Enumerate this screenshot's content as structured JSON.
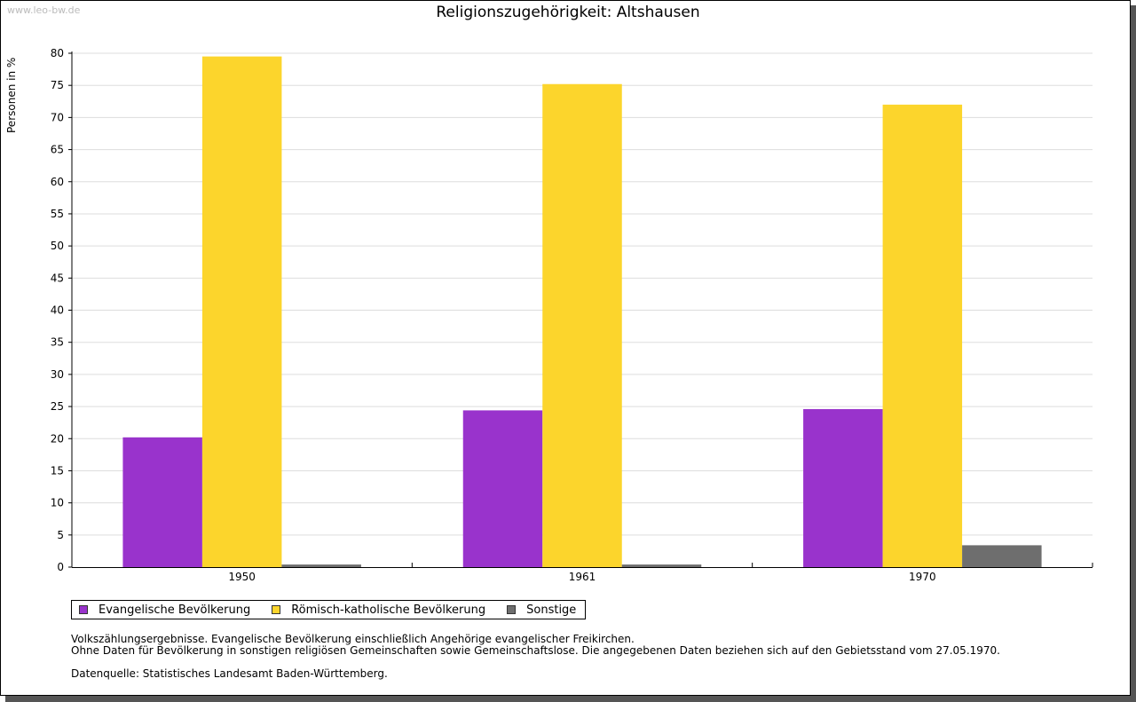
{
  "watermark": "www.leo-bw.de",
  "chart_data": {
    "type": "bar",
    "title": "Religionszugehörigkeit: Altshausen",
    "xlabel": "",
    "ylabel": "Personen in %",
    "categories": [
      "1950",
      "1961",
      "1970"
    ],
    "series": [
      {
        "name": "Evangelische Bevölkerung",
        "color": "#9933cc",
        "values": [
          20.2,
          24.4,
          24.6
        ]
      },
      {
        "name": "Römisch-katholische Bevölkerung",
        "color": "#fcd52c",
        "values": [
          79.5,
          75.2,
          72.0
        ]
      },
      {
        "name": "Sonstige",
        "color": "#6e6e6e",
        "values": [
          0.4,
          0.4,
          3.4
        ]
      }
    ],
    "ylim": [
      0,
      80
    ],
    "yticks": [
      "0",
      "5",
      "10",
      "15",
      "20",
      "25",
      "30",
      "35",
      "40",
      "45",
      "50",
      "55",
      "60",
      "65",
      "70",
      "75",
      "80"
    ],
    "grid": true,
    "legend": "bottom-left"
  },
  "notes": {
    "line1": "Volkszählungsergebnisse. Evangelische Bevölkerung einschließlich Angehörige evangelischer Freikirchen.",
    "line2": "Ohne Daten für Bevölkerung in sonstigen religiösen Gemeinschaften sowie Gemeinschaftslose. Die angegebenen Daten beziehen sich auf den Gebietsstand vom 27.05.1970.",
    "source": "Datenquelle: Statistisches Landesamt Baden-Württemberg."
  }
}
